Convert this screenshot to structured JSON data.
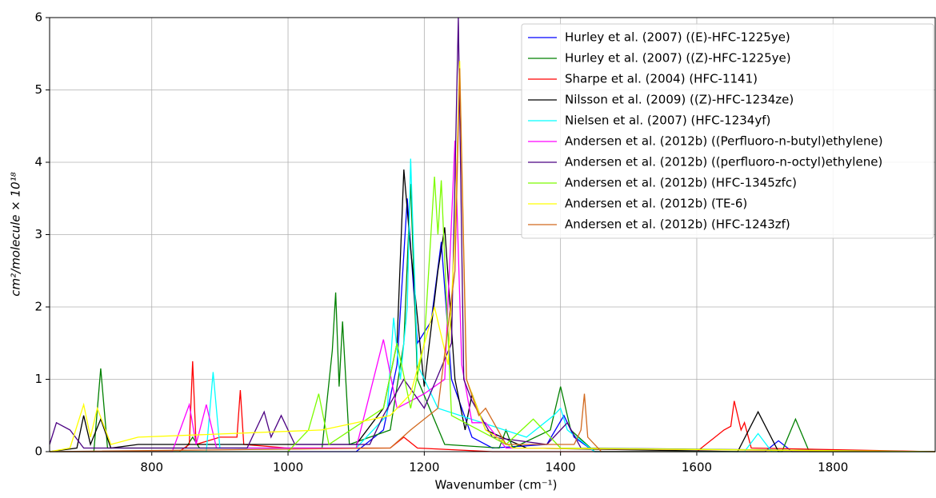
{
  "chart_data": {
    "type": "line",
    "xlabel": "Wavenumber (cm⁻¹)",
    "ylabel": "cm²/molecule × 10¹⁸",
    "xlim": [
      650,
      1950
    ],
    "ylim": [
      0,
      6
    ],
    "xticks": [
      800,
      1000,
      1200,
      1400,
      1600,
      1800
    ],
    "yticks": [
      0,
      1,
      2,
      3,
      4,
      5,
      6
    ],
    "grid": true,
    "legend": "upper right",
    "series": [
      {
        "name": "Hurley et al. (2007) ((E)-HFC-1225ye)",
        "color": "#0000ff",
        "x": [
          650,
          1100,
          1140,
          1160,
          1175,
          1190,
          1210,
          1225,
          1240,
          1270,
          1300,
          1380,
          1405,
          1420,
          1450,
          1700,
          1720,
          1740,
          1950
        ],
        "values": [
          0,
          0,
          0.3,
          1.2,
          3.5,
          1.5,
          1.8,
          2.9,
          1.0,
          0.2,
          0.05,
          0.1,
          0.5,
          0.2,
          0,
          0,
          0.15,
          0,
          0
        ]
      },
      {
        "name": "Hurley et al. (2007) ((Z)-HFC-1225ye)",
        "color": "#008000",
        "x": [
          650,
          715,
          725,
          735,
          850,
          860,
          870,
          1050,
          1065,
          1070,
          1075,
          1080,
          1090,
          1150,
          1170,
          1180,
          1190,
          1230,
          1310,
          1320,
          1330,
          1385,
          1400,
          1415,
          1450,
          1725,
          1745,
          1765,
          1950
        ],
        "values": [
          0,
          0,
          1.15,
          0.05,
          0.05,
          0.2,
          0.05,
          0.05,
          1.4,
          2.2,
          0.9,
          1.8,
          0.1,
          0.3,
          1.5,
          3.7,
          1.0,
          0.1,
          0.05,
          0.3,
          0.05,
          0.3,
          0.9,
          0.3,
          0,
          0,
          0.45,
          0,
          0
        ]
      },
      {
        "name": "Sharpe et al. (2004) (HFC-1141)",
        "color": "#ff0000",
        "x": [
          650,
          840,
          855,
          860,
          865,
          900,
          925,
          930,
          935,
          1000,
          1150,
          1170,
          1190,
          1300,
          1600,
          1640,
          1650,
          1655,
          1665,
          1670,
          1680,
          1950
        ],
        "values": [
          0,
          0,
          0.1,
          1.25,
          0.1,
          0.2,
          0.2,
          0.85,
          0.1,
          0.05,
          0.05,
          0.2,
          0.05,
          0,
          0,
          0.3,
          0.35,
          0.7,
          0.3,
          0.4,
          0.05,
          0
        ]
      },
      {
        "name": "Nilsson et al. (2009) ((Z)-HFC-1234ze)",
        "color": "#000000",
        "x": [
          650,
          690,
          700,
          710,
          725,
          740,
          780,
          1100,
          1140,
          1160,
          1170,
          1180,
          1200,
          1220,
          1230,
          1245,
          1260,
          1270,
          1290,
          1350,
          1660,
          1690,
          1720,
          1950
        ],
        "values": [
          0,
          0.05,
          0.5,
          0.1,
          0.45,
          0.05,
          0.1,
          0.1,
          0.6,
          1.5,
          3.9,
          2.8,
          0.9,
          2.5,
          3.1,
          1.0,
          0.3,
          0.8,
          0.3,
          0.05,
          0,
          0.55,
          0,
          0
        ]
      },
      {
        "name": "Nielsen et al. (2007) (HFC-1234yf)",
        "color": "#00ffff",
        "x": [
          650,
          880,
          890,
          900,
          1100,
          1145,
          1155,
          1165,
          1175,
          1180,
          1190,
          1220,
          1350,
          1390,
          1400,
          1410,
          1450,
          1670,
          1690,
          1710,
          1950
        ],
        "values": [
          0,
          0,
          1.1,
          0.05,
          0.05,
          0.5,
          1.85,
          1.0,
          2.0,
          4.05,
          1.2,
          0.6,
          0.2,
          0.5,
          0.6,
          0.3,
          0,
          0,
          0.25,
          0,
          0
        ]
      },
      {
        "name": "Andersen et al. (2012b) ((Perfluoro-n-butyl)ethylene)",
        "color": "#ff00ff",
        "x": [
          650,
          830,
          855,
          865,
          880,
          895,
          1100,
          1140,
          1160,
          1200,
          1230,
          1245,
          1255,
          1270,
          1290,
          1320,
          1950
        ],
        "values": [
          0,
          0,
          0.65,
          0.1,
          0.65,
          0.05,
          0.05,
          1.55,
          0.6,
          0.8,
          1.0,
          4.3,
          1.2,
          0.4,
          0.4,
          0.05,
          0
        ]
      },
      {
        "name": "Andersen et al. (2012b) ((perfluoro-n-octyl)ethylene)",
        "color": "#4b0082",
        "x": [
          650,
          660,
          680,
          700,
          940,
          965,
          975,
          990,
          1010,
          1120,
          1140,
          1170,
          1200,
          1240,
          1250,
          1258,
          1270,
          1300,
          1380,
          1410,
          1430,
          1950
        ],
        "values": [
          0.1,
          0.4,
          0.3,
          0.05,
          0.05,
          0.55,
          0.2,
          0.5,
          0.1,
          0.1,
          0.5,
          1.0,
          0.6,
          1.5,
          6.0,
          1.0,
          0.7,
          0.2,
          0.1,
          0.4,
          0.05,
          0
        ]
      },
      {
        "name": "Andersen et al. (2012b) (HFC-1345zfc)",
        "color": "#7cfc00",
        "x": [
          650,
          1000,
          1030,
          1045,
          1060,
          1140,
          1160,
          1180,
          1200,
          1215,
          1220,
          1225,
          1240,
          1320,
          1360,
          1400,
          1950
        ],
        "values": [
          0,
          0,
          0.3,
          0.8,
          0.1,
          0.6,
          1.5,
          0.6,
          1.5,
          3.8,
          3.0,
          3.75,
          0.5,
          0.1,
          0.45,
          0.05,
          0
        ]
      },
      {
        "name": "Andersen et al. (2012b) (TE-6)",
        "color": "#ffff00",
        "x": [
          650,
          680,
          700,
          710,
          720,
          740,
          780,
          1050,
          1150,
          1180,
          1215,
          1235,
          1245,
          1252,
          1262,
          1290,
          1330,
          1950
        ],
        "values": [
          0,
          0.05,
          0.65,
          0.2,
          0.6,
          0.1,
          0.2,
          0.3,
          0.5,
          0.8,
          2.0,
          1.2,
          3.0,
          5.4,
          1.0,
          0.3,
          0.05,
          0
        ]
      },
      {
        "name": "Andersen et al. (2012b) (HFC-1243zf)",
        "color": "#d2691e",
        "x": [
          650,
          1150,
          1180,
          1220,
          1245,
          1252,
          1262,
          1280,
          1290,
          1320,
          1420,
          1430,
          1435,
          1440,
          1460,
          1950
        ],
        "values": [
          0,
          0.05,
          0.3,
          0.6,
          2.5,
          5.3,
          1.0,
          0.5,
          0.6,
          0.1,
          0.1,
          0.3,
          0.8,
          0.2,
          0,
          0
        ]
      }
    ]
  }
}
